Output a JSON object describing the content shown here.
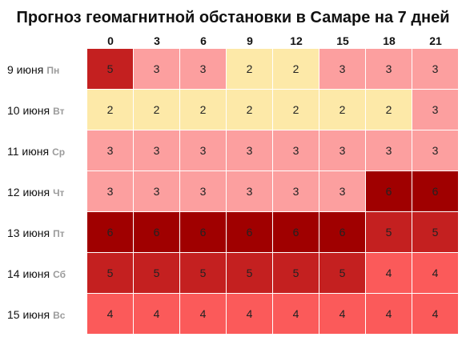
{
  "title": "Прогноз геомагнитной обстановки в Самаре на 7 дней",
  "hours": [
    "0",
    "3",
    "6",
    "9",
    "12",
    "15",
    "18",
    "21"
  ],
  "days": [
    {
      "date": "9 июня",
      "weekday": "Пн",
      "values": [
        "5",
        "3",
        "3",
        "2",
        "2",
        "3",
        "3",
        "3"
      ]
    },
    {
      "date": "10 июня",
      "weekday": "Вт",
      "values": [
        "2",
        "2",
        "2",
        "2",
        "2",
        "2",
        "2",
        "3"
      ]
    },
    {
      "date": "11 июня",
      "weekday": "Ср",
      "values": [
        "3",
        "3",
        "3",
        "3",
        "3",
        "3",
        "3",
        "3"
      ]
    },
    {
      "date": "12 июня",
      "weekday": "Чт",
      "values": [
        "3",
        "3",
        "3",
        "3",
        "3",
        "3",
        "6",
        "6"
      ]
    },
    {
      "date": "13 июня",
      "weekday": "Пт",
      "values": [
        "6",
        "6",
        "6",
        "6",
        "6",
        "6",
        "5",
        "5"
      ]
    },
    {
      "date": "14 июня",
      "weekday": "Сб",
      "values": [
        "5",
        "5",
        "5",
        "5",
        "5",
        "5",
        "4",
        "4"
      ]
    },
    {
      "date": "15 июня",
      "weekday": "Вс",
      "values": [
        "4",
        "4",
        "4",
        "4",
        "4",
        "4",
        "4",
        "4"
      ]
    }
  ],
  "level_colors": {
    "2": "#fde9a8",
    "3": "#fc9f9f",
    "4": "#fb5a5a",
    "5": "#c42020",
    "6": "#a00000"
  }
}
